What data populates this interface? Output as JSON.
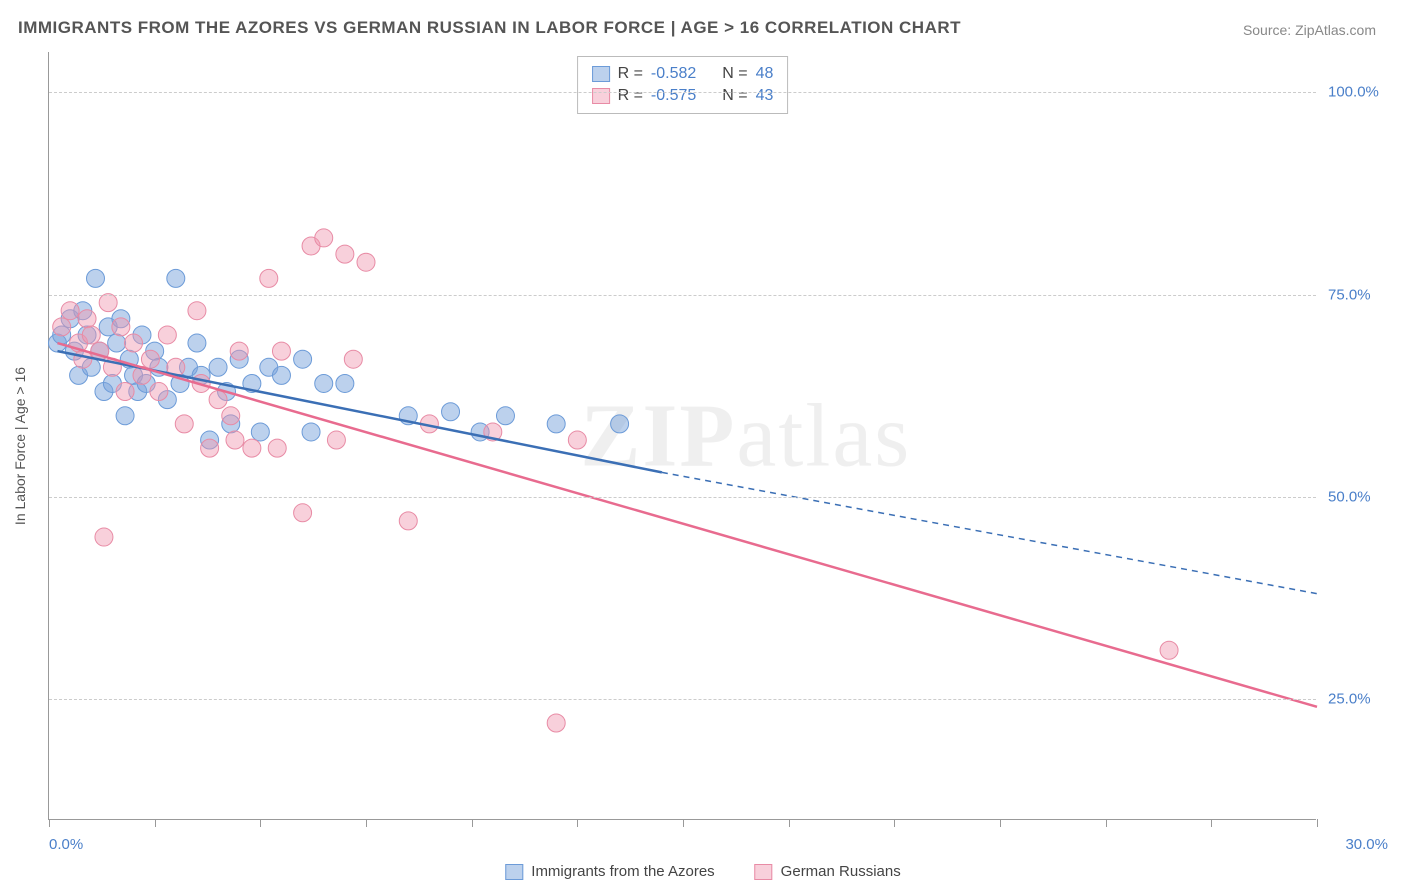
{
  "title": "IMMIGRANTS FROM THE AZORES VS GERMAN RUSSIAN IN LABOR FORCE | AGE > 16 CORRELATION CHART",
  "source": "Source: ZipAtlas.com",
  "ylabel": "In Labor Force | Age > 16",
  "watermark_a": "ZIP",
  "watermark_b": "atlas",
  "chart": {
    "type": "scatter",
    "background_color": "#ffffff",
    "grid_color": "#cccccc",
    "axis_color": "#999999",
    "axis_label_color": "#4a7fc9",
    "xlim": [
      0,
      30
    ],
    "ylim": [
      10,
      105
    ],
    "xticks": [
      0,
      2.5,
      5,
      7.5,
      10,
      12.5,
      15,
      17.5,
      20,
      22.5,
      25,
      27.5,
      30
    ],
    "xtick_labels": {
      "0": "0.0%",
      "30": "30.0%"
    },
    "yticks": [
      25,
      50,
      75,
      100
    ],
    "ytick_labels": {
      "25": "25.0%",
      "50": "50.0%",
      "75": "75.0%",
      "100": "100.0%"
    },
    "series": [
      {
        "name": "Immigrants from the Azores",
        "color_fill": "rgba(121,163,220,0.5)",
        "color_stroke": "#6c9bd8",
        "line_color": "#3b6fb5",
        "r_value": "-0.582",
        "n_value": "48",
        "marker_radius": 9,
        "trendline": {
          "x1": 0.2,
          "y1": 68,
          "x_solid_end": 14.5,
          "y_solid_end": 53,
          "x2": 30,
          "y2": 38,
          "dashed_extension": true
        },
        "points": [
          [
            0.2,
            69
          ],
          [
            0.3,
            70
          ],
          [
            0.5,
            72
          ],
          [
            0.6,
            68
          ],
          [
            0.7,
            65
          ],
          [
            0.8,
            73
          ],
          [
            0.9,
            70
          ],
          [
            1.0,
            66
          ],
          [
            1.1,
            77
          ],
          [
            1.2,
            68
          ],
          [
            1.3,
            63
          ],
          [
            1.4,
            71
          ],
          [
            1.5,
            64
          ],
          [
            1.6,
            69
          ],
          [
            1.7,
            72
          ],
          [
            1.8,
            60
          ],
          [
            1.9,
            67
          ],
          [
            2.0,
            65
          ],
          [
            2.1,
            63
          ],
          [
            2.2,
            70
          ],
          [
            2.3,
            64
          ],
          [
            2.5,
            68
          ],
          [
            2.6,
            66
          ],
          [
            2.8,
            62
          ],
          [
            3.0,
            77
          ],
          [
            3.1,
            64
          ],
          [
            3.3,
            66
          ],
          [
            3.5,
            69
          ],
          [
            3.6,
            65
          ],
          [
            3.8,
            57
          ],
          [
            4.0,
            66
          ],
          [
            4.2,
            63
          ],
          [
            4.3,
            59
          ],
          [
            4.5,
            67
          ],
          [
            4.8,
            64
          ],
          [
            5.0,
            58
          ],
          [
            5.2,
            66
          ],
          [
            5.5,
            65
          ],
          [
            6.0,
            67
          ],
          [
            6.2,
            58
          ],
          [
            6.5,
            64
          ],
          [
            7.0,
            64
          ],
          [
            8.5,
            60
          ],
          [
            9.5,
            60.5
          ],
          [
            10.2,
            58
          ],
          [
            10.8,
            60
          ],
          [
            12.0,
            59
          ],
          [
            13.5,
            59
          ]
        ]
      },
      {
        "name": "German Russians",
        "color_fill": "rgba(240,150,175,0.45)",
        "color_stroke": "#e88ba5",
        "line_color": "#e86b8f",
        "r_value": "-0.575",
        "n_value": "43",
        "marker_radius": 9,
        "trendline": {
          "x1": 0.2,
          "y1": 69,
          "x_solid_end": 30,
          "y_solid_end": 24,
          "x2": 30,
          "y2": 24,
          "dashed_extension": false
        },
        "points": [
          [
            0.3,
            71
          ],
          [
            0.5,
            73
          ],
          [
            0.7,
            69
          ],
          [
            0.8,
            67
          ],
          [
            0.9,
            72
          ],
          [
            1.0,
            70
          ],
          [
            1.2,
            68
          ],
          [
            1.3,
            45
          ],
          [
            1.4,
            74
          ],
          [
            1.5,
            66
          ],
          [
            1.7,
            71
          ],
          [
            1.8,
            63
          ],
          [
            2.0,
            69
          ],
          [
            2.2,
            65
          ],
          [
            2.4,
            67
          ],
          [
            2.6,
            63
          ],
          [
            2.8,
            70
          ],
          [
            3.0,
            66
          ],
          [
            3.2,
            59
          ],
          [
            3.5,
            73
          ],
          [
            3.6,
            64
          ],
          [
            3.8,
            56
          ],
          [
            4.0,
            62
          ],
          [
            4.4,
            57
          ],
          [
            4.5,
            68
          ],
          [
            4.8,
            56
          ],
          [
            5.2,
            77
          ],
          [
            5.4,
            56
          ],
          [
            5.5,
            68
          ],
          [
            6.0,
            48
          ],
          [
            6.2,
            81
          ],
          [
            6.5,
            82
          ],
          [
            6.8,
            57
          ],
          [
            7.0,
            80
          ],
          [
            7.2,
            67
          ],
          [
            7.5,
            79
          ],
          [
            8.5,
            47
          ],
          [
            9.0,
            59
          ],
          [
            10.5,
            58
          ],
          [
            12.0,
            22
          ],
          [
            12.5,
            57
          ],
          [
            26.5,
            31
          ],
          [
            4.3,
            60
          ]
        ]
      }
    ],
    "stats_legend_labels": {
      "R": "R =",
      "N": "N ="
    },
    "bottom_legend": [
      {
        "label": "Immigrants from the Azores",
        "fill": "rgba(121,163,220,0.5)",
        "stroke": "#6c9bd8"
      },
      {
        "label": "German Russians",
        "fill": "rgba(240,150,175,0.45)",
        "stroke": "#e88ba5"
      }
    ]
  }
}
